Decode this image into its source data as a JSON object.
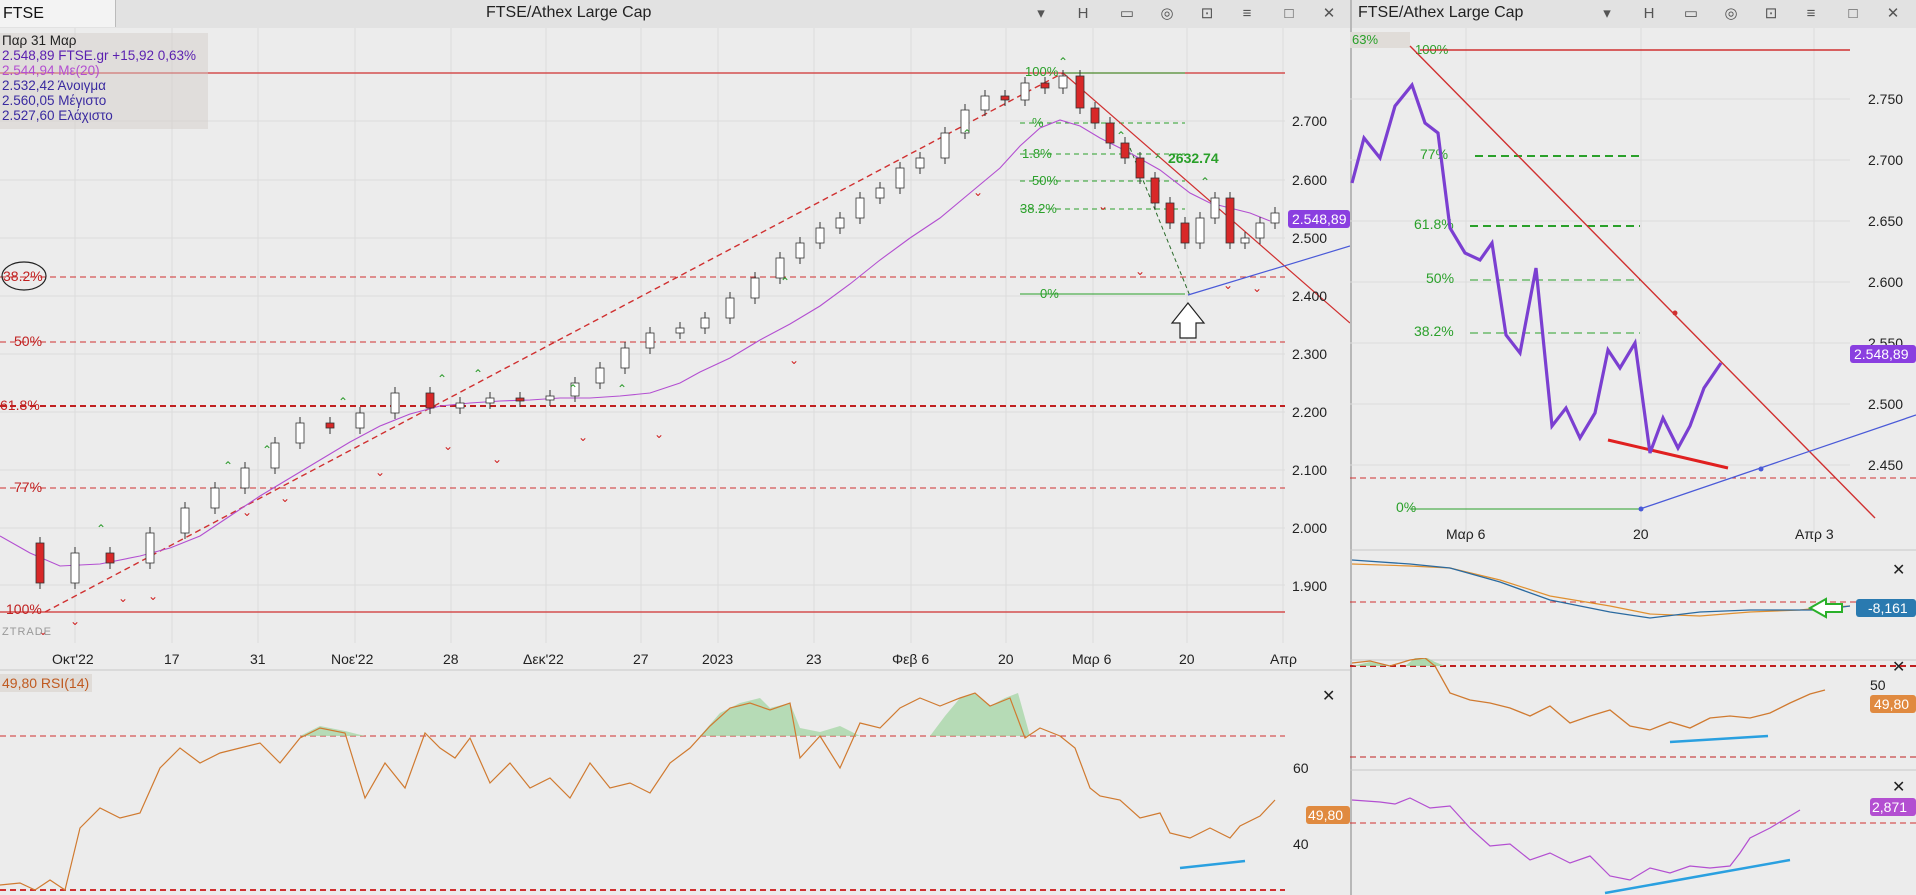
{
  "left_window": {
    "symbol": "FTSE",
    "title": "FTSE/Athex Large Cap",
    "toolbar": {
      "h_label": "H",
      "dropdown_icon": "chevron-down-icon"
    },
    "legend": {
      "date": "Παρ 31 Μαρ",
      "close": "2.548,89 FTSE.gr +15,92 0,63%",
      "ma": "2.544,94 Με(20)",
      "open": "2.532,42 Άνοιγμα",
      "high": "2.560,05 Μέγιστο",
      "low": "2.527,60 Ελάχιστο"
    },
    "watermark": "ZTRADE",
    "price_axis": [
      "2.700",
      "2.600",
      "2.500",
      "2.400",
      "2.300",
      "2.200",
      "2.100",
      "2.000",
      "1.900"
    ],
    "last_price": "2.548,89",
    "time_axis": [
      "Οκτ'22",
      "17",
      "31",
      "Νοε'22",
      "28",
      "Δεκ'22",
      "27",
      "2023",
      "23",
      "Φεβ 6",
      "20",
      "Μαρ 6",
      "20",
      "Απρ"
    ],
    "fib_long": [
      "38.2%",
      "50%",
      "61.8%",
      "77%",
      "100%"
    ],
    "fib_short": [
      "100%",
      "1.8%",
      "50%",
      "38.2%",
      "0%"
    ],
    "fib_short_partial": "%",
    "target_label": "2632.74",
    "rsi": {
      "title": "49,80 RSI(14)",
      "axis": [
        "60",
        "40"
      ],
      "value": "49,80"
    }
  },
  "right_window": {
    "title": "FTSE/Athex Large Cap",
    "toolbar": {
      "h_label": "H"
    },
    "fib_labels": [
      "63%",
      "100%",
      "77%",
      "61.8%",
      "50%",
      "38.2%",
      "0%"
    ],
    "price_axis": [
      "2.750",
      "2.700",
      "2.650",
      "2.600",
      "2.550",
      "2.500",
      "2.450"
    ],
    "last_price": "2.548,89",
    "time_axis": [
      "Μαρ 6",
      "20",
      "Απρ 3"
    ],
    "indicator1_value": "-8,161",
    "indicator2_axis": "50",
    "indicator2_value": "49,80",
    "indicator3_value": "2,871"
  },
  "colors": {
    "accent": "#7b3fd1",
    "fib": "#d03030",
    "green": "#2aa02a",
    "rsi": "#d07a30"
  }
}
